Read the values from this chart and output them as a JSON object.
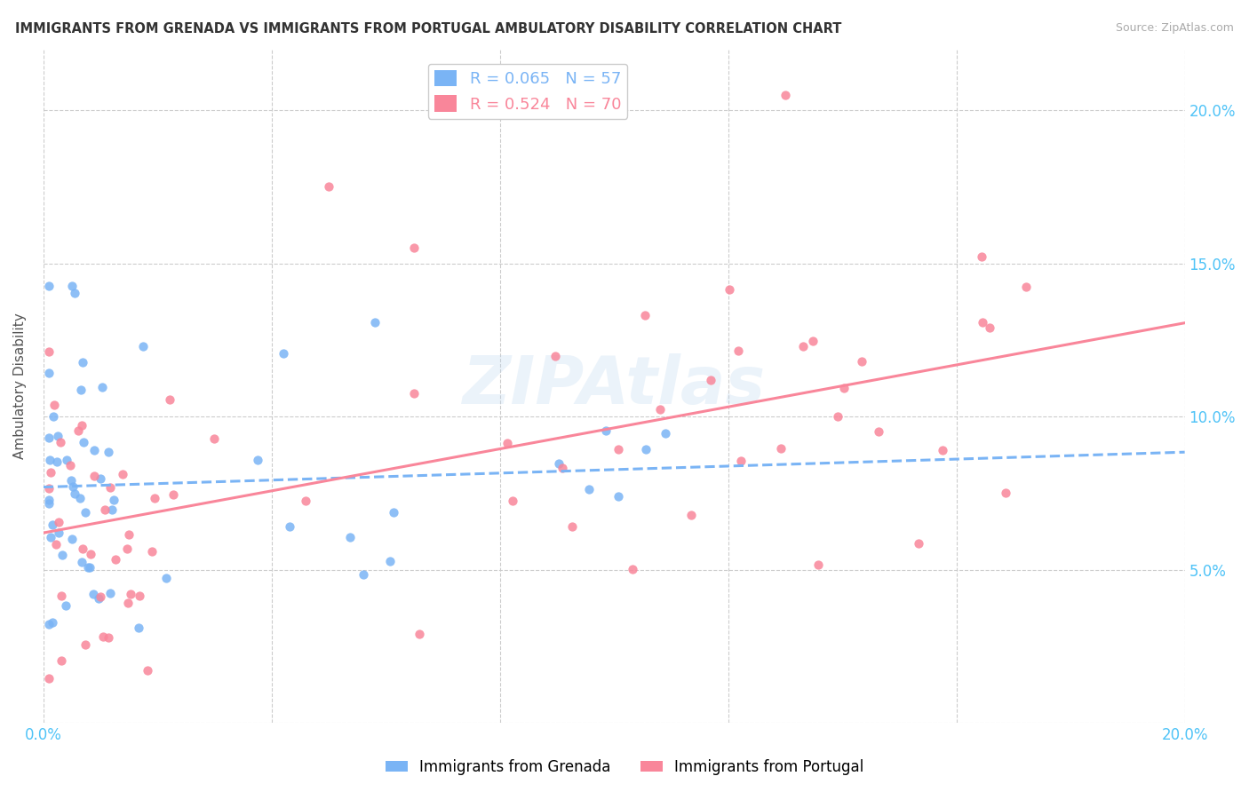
{
  "title": "IMMIGRANTS FROM GRENADA VS IMMIGRANTS FROM PORTUGAL AMBULATORY DISABILITY CORRELATION CHART",
  "source": "Source: ZipAtlas.com",
  "ylabel": "Ambulatory Disability",
  "xmin": 0.0,
  "xmax": 0.2,
  "ymin": 0.0,
  "ymax": 0.22,
  "yticks": [
    0.0,
    0.05,
    0.1,
    0.15,
    0.2
  ],
  "xticks": [
    0.0,
    0.04,
    0.08,
    0.12,
    0.16,
    0.2
  ],
  "grenada_color": "#7ab4f5",
  "portugal_color": "#f9869a",
  "grenada_R": 0.065,
  "grenada_N": 57,
  "portugal_R": 0.524,
  "portugal_N": 70,
  "legend_label_grenada": "Immigrants from Grenada",
  "legend_label_portugal": "Immigrants from Portugal",
  "watermark": "ZIPAtlas",
  "axis_color": "#4fc3f7"
}
